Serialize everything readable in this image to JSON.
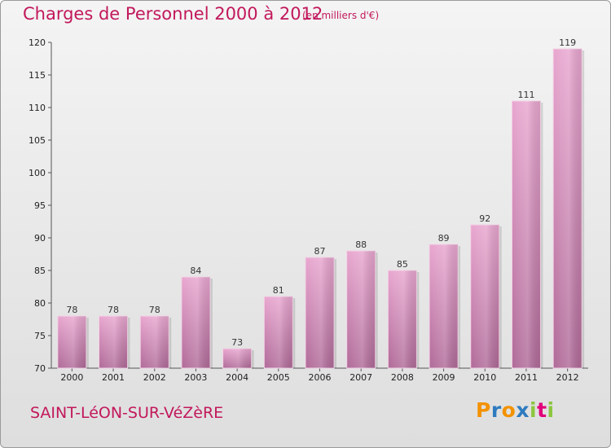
{
  "header": {
    "title": "Charges de Personnel 2000 à 2012",
    "subtitle": "(en milliers d'€)"
  },
  "footer": {
    "commune": "SAINT-LéON-SUR-VéZèRE",
    "logo_letters": [
      "P",
      "r",
      "o",
      "x",
      "i",
      "t",
      "i"
    ],
    "logo_colors": [
      "#f39200",
      "#2e7bbf",
      "#f39200",
      "#2e7bbf",
      "#8cc63f",
      "#e2007a",
      "#8cc63f"
    ]
  },
  "colors": {
    "bar_light": "#e8a6cf",
    "bar_dark": "#b06a98",
    "accent": "#c2185b"
  },
  "chart_data": {
    "type": "bar",
    "title": "Charges de Personnel 2000 à 2012",
    "subtitle": "(en milliers d'€)",
    "categories": [
      "2000",
      "2001",
      "2002",
      "2003",
      "2004",
      "2005",
      "2006",
      "2007",
      "2008",
      "2009",
      "2010",
      "2011",
      "2012"
    ],
    "values": [
      78,
      78,
      78,
      84,
      73,
      81,
      87,
      88,
      85,
      89,
      92,
      111,
      119
    ],
    "ylim": [
      70,
      120
    ],
    "yticks": [
      70,
      75,
      80,
      85,
      90,
      95,
      100,
      105,
      110,
      115,
      120
    ],
    "grid": false,
    "data_labels": true
  }
}
